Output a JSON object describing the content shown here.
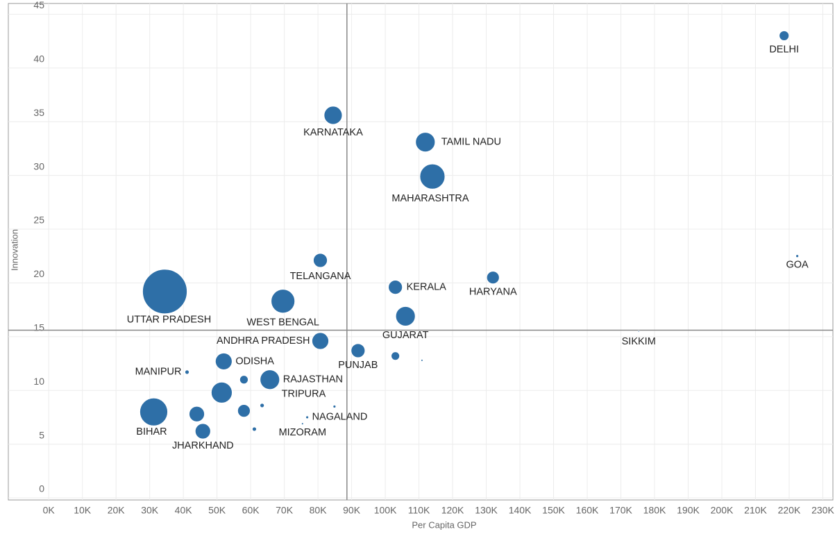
{
  "chart_data": {
    "type": "scatter",
    "x_label": "Per Capita GDP",
    "y_label": "Innovation",
    "xlim": [
      -12000,
      233000
    ],
    "ylim": [
      0,
      46
    ],
    "xticks": [
      {
        "value": 0,
        "label": "0K"
      },
      {
        "value": 10000,
        "label": "10K"
      },
      {
        "value": 20000,
        "label": "20K"
      },
      {
        "value": 30000,
        "label": "30K"
      },
      {
        "value": 40000,
        "label": "40K"
      },
      {
        "value": 50000,
        "label": "50K"
      },
      {
        "value": 60000,
        "label": "60K"
      },
      {
        "value": 70000,
        "label": "70K"
      },
      {
        "value": 80000,
        "label": "80K"
      },
      {
        "value": 90000,
        "label": "90K"
      },
      {
        "value": 100000,
        "label": "100K"
      },
      {
        "value": 110000,
        "label": "110K"
      },
      {
        "value": 120000,
        "label": "120K"
      },
      {
        "value": 130000,
        "label": "130K"
      },
      {
        "value": 140000,
        "label": "140K"
      },
      {
        "value": 150000,
        "label": "150K"
      },
      {
        "value": 160000,
        "label": "160K"
      },
      {
        "value": 170000,
        "label": "170K"
      },
      {
        "value": 180000,
        "label": "180K"
      },
      {
        "value": 190000,
        "label": "190K"
      },
      {
        "value": 200000,
        "label": "200K"
      },
      {
        "value": 210000,
        "label": "210K"
      },
      {
        "value": 220000,
        "label": "220K"
      },
      {
        "value": 230000,
        "label": "230K"
      }
    ],
    "yticks": [
      0,
      5,
      10,
      15,
      20,
      25,
      30,
      35,
      40,
      45
    ],
    "grid": true,
    "color": "#2e6fa7",
    "reference_lines": {
      "x": 88600,
      "y": 15.6
    },
    "names": [
      "DELHI",
      "GOA",
      "SIKKIM",
      "KARNATAKA",
      "TAMIL NADU",
      "MAHARASHTRA",
      "TELANGANA",
      "KERALA",
      "HARYANA",
      "UTTAR PRADESH",
      "WEST BENGAL",
      "GUJARAT",
      "ANDHRA PRADESH",
      "PUNJAB",
      null,
      null,
      "ODISHA",
      "MANIPUR",
      null,
      "RAJASTHAN",
      null,
      "TRIPURA",
      null,
      "BIHAR",
      null,
      null,
      "NAGALAND",
      "MIZORAM",
      null,
      "JHARKHAND"
    ],
    "x": [
      218500,
      222400,
      175300,
      84500,
      111900,
      114000,
      80700,
      103000,
      132000,
      34500,
      69600,
      106000,
      80700,
      91900,
      103000,
      110900,
      52000,
      41100,
      58000,
      65700,
      51400,
      63400,
      84900,
      31200,
      44000,
      58000,
      76800,
      75400,
      61100,
      45800
    ],
    "y": [
      43.0,
      22.5,
      15.5,
      35.6,
      33.1,
      29.9,
      22.1,
      19.6,
      20.5,
      19.2,
      18.3,
      16.9,
      14.6,
      13.7,
      13.2,
      12.8,
      12.7,
      11.7,
      11.0,
      11.0,
      9.8,
      8.6,
      8.5,
      8.0,
      7.8,
      8.1,
      7.5,
      6.9,
      6.4,
      6.2
    ],
    "sizes": [
      49,
      4,
      1,
      169,
      196,
      324,
      100,
      100,
      81,
      1024,
      289,
      196,
      144,
      100,
      36,
      2,
      144,
      9,
      36,
      196,
      225,
      9,
      4,
      400,
      121,
      81,
      4,
      2,
      9,
      121
    ]
  }
}
